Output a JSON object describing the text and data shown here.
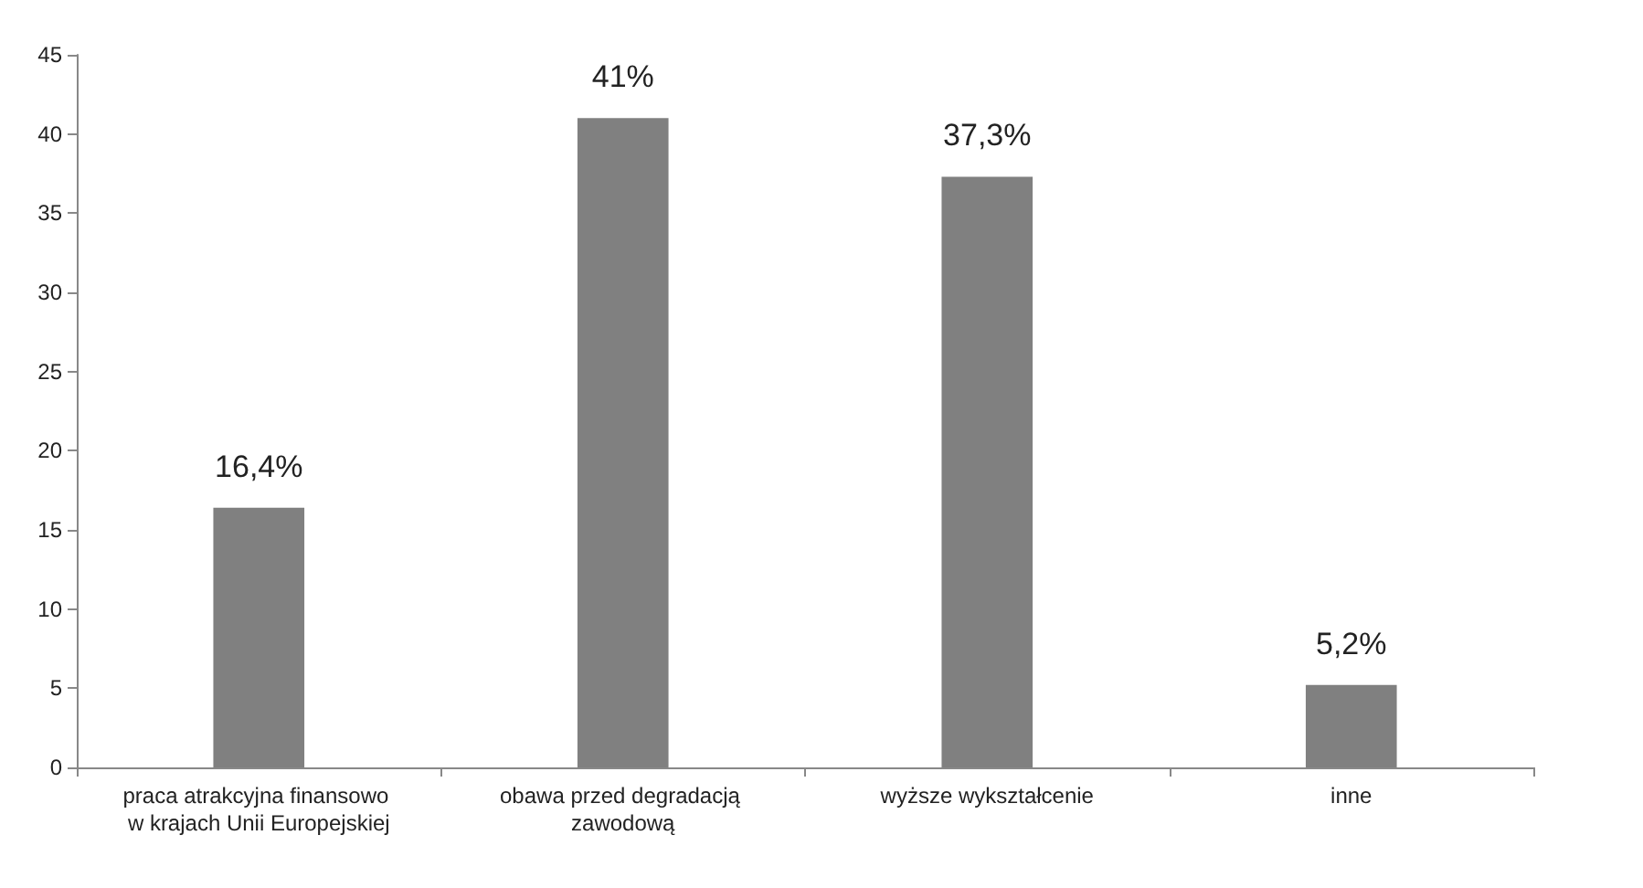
{
  "chart_data": {
    "type": "bar",
    "categories": [
      "praca atrakcyjna finansowo w krajach Unii Europejskiej",
      "obawa przed degradacją zawodową",
      "wyższe wykształcenie",
      "inne"
    ],
    "values": [
      16.4,
      41,
      37.3,
      5.2
    ],
    "value_labels": [
      "16,4%",
      "41%",
      "37,3%",
      "5,2%"
    ],
    "color": "#808080",
    "ylim": [
      0,
      45
    ],
    "yticks": [
      0,
      5,
      10,
      15,
      20,
      25,
      30,
      35,
      40,
      45
    ]
  }
}
